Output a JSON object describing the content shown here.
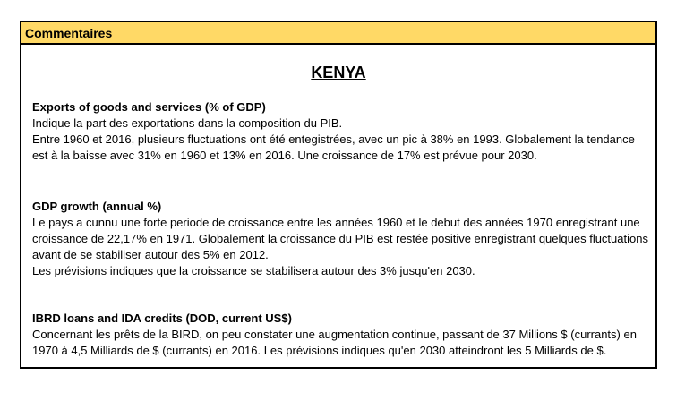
{
  "header": {
    "title": "Commentaires"
  },
  "country": "KENYA",
  "sections": [
    {
      "title": "Exports of goods and services (% of GDP)",
      "lines": [
        "Indique la part des exportations dans la composition du PIB.",
        "Entre 1960 et 2016, plusieurs fluctuations ont été entegistrées, avec un pic à 38% en 1993. Globalement la tendance est à la baisse avec 31% en 1960 et 13% en 2016. Une croissance de 17% est prévue pour 2030."
      ]
    },
    {
      "title": "GDP growth (annual %)",
      "lines": [
        "Le pays a cunnu une forte periode de croissance entre les années 1960 et le debut des années 1970 enregistrant une croissance de 22,17%  en 1971. Globalement la croissance du PIB est restée positive enregistrant quelques fluctuations avant de se stabiliser autour des 5% en 2012.",
        "Les prévisions indiques que la croissance se stabilisera autour des 3% jusqu'en 2030."
      ]
    },
    {
      "title": "IBRD loans and IDA credits (DOD, current US$)",
      "lines": [
        "Concernant les prêts de la BIRD, on peu constater une augmentation continue, passant de 37 Millions $ (currants) en 1970 à 4,5 Milliards de $ (currants) en 2016. Les prévisions indiques qu'en 2030 atteindront les 5 Milliards de $."
      ]
    }
  ],
  "colors": {
    "header_background": "#ffd966",
    "border": "#000000"
  }
}
